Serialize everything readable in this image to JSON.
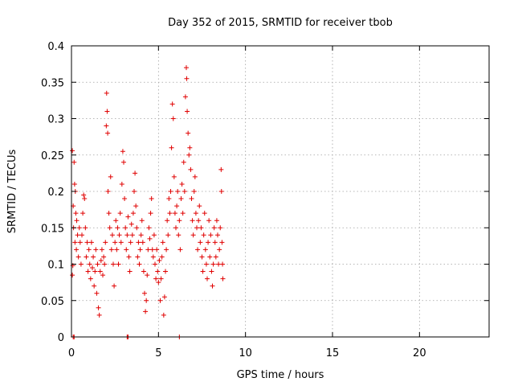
{
  "chart_data": {
    "type": "scatter",
    "title": "Day 352 of 2015, SRMTID for receiver tbob",
    "xlabel": "GPS time / hours",
    "ylabel": "SRMTID / TECUs",
    "xlim": [
      0,
      24
    ],
    "ylim": [
      0,
      0.4
    ],
    "x_ticks": [
      0,
      5,
      10,
      15,
      20
    ],
    "x_tick_labels": [
      "0",
      "5",
      "10",
      "15",
      "20"
    ],
    "y_ticks": [
      0,
      0.05,
      0.1,
      0.15,
      0.2,
      0.25,
      0.3,
      0.35,
      0.4
    ],
    "y_tick_labels": [
      "0",
      "0.05",
      "0.1",
      "0.15",
      "0.2",
      "0.25",
      "0.3",
      "0.35",
      "0.4"
    ],
    "grid": true,
    "marker": "+",
    "color": "#e00000",
    "series": [
      {
        "name": "SRMTID",
        "points": [
          [
            0.05,
            0.256
          ],
          [
            0.05,
            0.085
          ],
          [
            0.08,
            0.098
          ],
          [
            0.1,
            0.18
          ],
          [
            0.12,
            0.15
          ],
          [
            0.15,
            0.24
          ],
          [
            0.18,
            0.21
          ],
          [
            0.2,
            0.13
          ],
          [
            0.22,
            0.2
          ],
          [
            0.25,
            0.17
          ],
          [
            0.28,
            0.12
          ],
          [
            0.3,
            0.16
          ],
          [
            0.35,
            0.14
          ],
          [
            0.4,
            0.11
          ],
          [
            0.45,
            0.15
          ],
          [
            0.5,
            0.13
          ],
          [
            0.55,
            0.1
          ],
          [
            0.6,
            0.14
          ],
          [
            0.65,
            0.17
          ],
          [
            0.7,
            0.195
          ],
          [
            0.75,
            0.19
          ],
          [
            0.8,
            0.15
          ],
          [
            0.85,
            0.11
          ],
          [
            0.9,
            0.13
          ],
          [
            0.95,
            0.09
          ],
          [
            1.0,
            0.12
          ],
          [
            1.05,
            0.1
          ],
          [
            1.1,
            0.08
          ],
          [
            1.15,
            0.13
          ],
          [
            1.2,
            0.095
          ],
          [
            1.25,
            0.11
          ],
          [
            1.3,
            0.07
          ],
          [
            1.35,
            0.09
          ],
          [
            1.4,
            0.12
          ],
          [
            1.45,
            0.06
          ],
          [
            1.5,
            0.1
          ],
          [
            1.55,
            0.04
          ],
          [
            1.6,
            0.03
          ],
          [
            1.65,
            0.09
          ],
          [
            1.7,
            0.105
          ],
          [
            1.75,
            0.12
          ],
          [
            1.8,
            0.085
          ],
          [
            1.85,
            0.11
          ],
          [
            1.9,
            0.1
          ],
          [
            1.95,
            0.13
          ],
          [
            2.0,
            0.29
          ],
          [
            2.02,
            0.335
          ],
          [
            2.05,
            0.31
          ],
          [
            2.08,
            0.28
          ],
          [
            2.1,
            0.2
          ],
          [
            2.15,
            0.17
          ],
          [
            2.2,
            0.15
          ],
          [
            2.25,
            0.22
          ],
          [
            2.3,
            0.12
          ],
          [
            2.35,
            0.14
          ],
          [
            2.4,
            0.1
          ],
          [
            2.45,
            0.07
          ],
          [
            2.5,
            0.13
          ],
          [
            2.55,
            0.16
          ],
          [
            2.6,
            0.12
          ],
          [
            2.65,
            0.15
          ],
          [
            2.7,
            0.1
          ],
          [
            2.75,
            0.14
          ],
          [
            2.8,
            0.17
          ],
          [
            2.85,
            0.13
          ],
          [
            2.9,
            0.21
          ],
          [
            2.95,
            0.255
          ],
          [
            3.0,
            0.24
          ],
          [
            3.05,
            0.19
          ],
          [
            3.1,
            0.15
          ],
          [
            3.15,
            0.12
          ],
          [
            3.2,
            0.14
          ],
          [
            3.25,
            0.165
          ],
          [
            3.3,
            0.11
          ],
          [
            3.35,
            0.09
          ],
          [
            3.4,
            0.13
          ],
          [
            3.45,
            0.155
          ],
          [
            3.5,
            0.14
          ],
          [
            3.55,
            0.17
          ],
          [
            3.6,
            0.2
          ],
          [
            3.65,
            0.225
          ],
          [
            3.7,
            0.18
          ],
          [
            3.75,
            0.15
          ],
          [
            3.8,
            0.11
          ],
          [
            3.85,
            0.13
          ],
          [
            3.9,
            0.1
          ],
          [
            3.95,
            0.12
          ],
          [
            4.0,
            0.14
          ],
          [
            4.05,
            0.16
          ],
          [
            4.1,
            0.13
          ],
          [
            4.15,
            0.09
          ],
          [
            4.2,
            0.06
          ],
          [
            4.25,
            0.035
          ],
          [
            4.3,
            0.05
          ],
          [
            4.35,
            0.085
          ],
          [
            4.4,
            0.12
          ],
          [
            4.45,
            0.15
          ],
          [
            4.5,
            0.135
          ],
          [
            4.55,
            0.17
          ],
          [
            4.6,
            0.19
          ],
          [
            4.65,
            0.12
          ],
          [
            4.7,
            0.11
          ],
          [
            4.75,
            0.14
          ],
          [
            4.8,
            0.1
          ],
          [
            4.85,
            0.08
          ],
          [
            4.9,
            0.12
          ],
          [
            4.95,
            0.09
          ],
          [
            5.0,
            0.075
          ],
          [
            5.05,
            0.105
          ],
          [
            5.1,
            0.05
          ],
          [
            5.15,
            0.08
          ],
          [
            5.2,
            0.11
          ],
          [
            5.25,
            0.13
          ],
          [
            5.3,
            0.03
          ],
          [
            5.35,
            0.055
          ],
          [
            5.4,
            0.09
          ],
          [
            5.45,
            0.12
          ],
          [
            5.5,
            0.16
          ],
          [
            5.55,
            0.14
          ],
          [
            5.6,
            0.19
          ],
          [
            5.65,
            0.17
          ],
          [
            5.7,
            0.2
          ],
          [
            5.75,
            0.26
          ],
          [
            5.8,
            0.32
          ],
          [
            5.85,
            0.3
          ],
          [
            5.9,
            0.22
          ],
          [
            5.95,
            0.17
          ],
          [
            6.0,
            0.15
          ],
          [
            6.05,
            0.18
          ],
          [
            6.1,
            0.2
          ],
          [
            6.15,
            0.14
          ],
          [
            6.2,
            0.16
          ],
          [
            6.25,
            0.12
          ],
          [
            6.3,
            0.19
          ],
          [
            6.35,
            0.21
          ],
          [
            6.4,
            0.17
          ],
          [
            6.45,
            0.24
          ],
          [
            6.5,
            0.2
          ],
          [
            6.55,
            0.33
          ],
          [
            6.6,
            0.37
          ],
          [
            6.62,
            0.355
          ],
          [
            6.65,
            0.31
          ],
          [
            6.7,
            0.28
          ],
          [
            6.75,
            0.25
          ],
          [
            6.8,
            0.26
          ],
          [
            6.85,
            0.23
          ],
          [
            6.9,
            0.19
          ],
          [
            6.95,
            0.16
          ],
          [
            7.0,
            0.14
          ],
          [
            7.05,
            0.2
          ],
          [
            7.1,
            0.22
          ],
          [
            7.15,
            0.17
          ],
          [
            7.2,
            0.15
          ],
          [
            7.25,
            0.12
          ],
          [
            7.3,
            0.16
          ],
          [
            7.35,
            0.18
          ],
          [
            7.4,
            0.13
          ],
          [
            7.45,
            0.15
          ],
          [
            7.5,
            0.11
          ],
          [
            7.55,
            0.09
          ],
          [
            7.6,
            0.14
          ],
          [
            7.65,
            0.17
          ],
          [
            7.7,
            0.12
          ],
          [
            7.75,
            0.1
          ],
          [
            7.8,
            0.08
          ],
          [
            7.85,
            0.13
          ],
          [
            7.9,
            0.16
          ],
          [
            7.95,
            0.11
          ],
          [
            8.0,
            0.14
          ],
          [
            8.05,
            0.09
          ],
          [
            8.1,
            0.07
          ],
          [
            8.15,
            0.1
          ],
          [
            8.2,
            0.15
          ],
          [
            8.25,
            0.13
          ],
          [
            8.3,
            0.11
          ],
          [
            8.35,
            0.16
          ],
          [
            8.4,
            0.14
          ],
          [
            8.45,
            0.1
          ],
          [
            8.5,
            0.12
          ],
          [
            8.55,
            0.15
          ],
          [
            8.6,
            0.23
          ],
          [
            8.62,
            0.2
          ],
          [
            8.65,
            0.13
          ],
          [
            8.68,
            0.1
          ],
          [
            8.7,
            0.08
          ],
          [
            0.1,
            0.0
          ],
          [
            0.15,
            0.0
          ],
          [
            3.2,
            0.0
          ],
          [
            3.25,
            0.0
          ],
          [
            6.2,
            0.0
          ]
        ]
      }
    ]
  }
}
